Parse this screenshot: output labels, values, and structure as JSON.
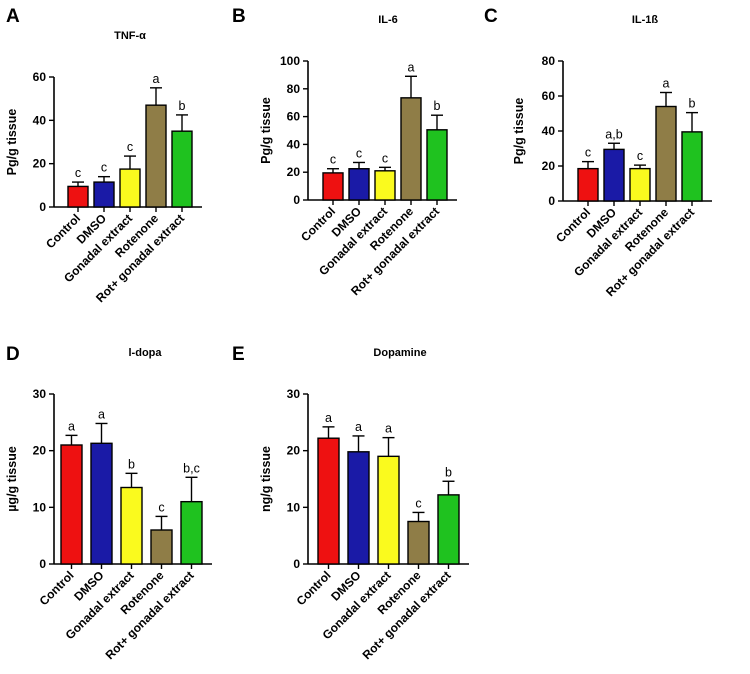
{
  "colors": {
    "Control": "#ee1111",
    "DMSO": "#1a1aa6",
    "Gonadal extract": "#fafa1e",
    "Rotenone": "#8f7d47",
    "Rot+ gonadal extract": "#1fc21f"
  },
  "chart_data": [
    {
      "type": "bar",
      "panel": "A",
      "title": "TNF-α",
      "ylabel": "Pg/g tissue",
      "ylim": [
        0,
        60
      ],
      "yticks": [
        0,
        20,
        40,
        60
      ],
      "categories": [
        "Control",
        "DMSO",
        "Gonadal extract",
        "Rotenone",
        "Rot+ gonadal extract"
      ],
      "values": [
        9.5,
        11.5,
        17.5,
        47,
        35
      ],
      "errors": [
        2,
        2.5,
        6,
        8,
        7.5
      ],
      "significance": [
        "c",
        "c",
        "c",
        "a",
        "b"
      ]
    },
    {
      "type": "bar",
      "panel": "B",
      "title": "IL-6",
      "ylabel": "Pg/g tissue",
      "ylim": [
        0,
        100
      ],
      "yticks": [
        0,
        20,
        40,
        60,
        80,
        100
      ],
      "categories": [
        "Control",
        "DMSO",
        "Gonadal extract",
        "Rotenone",
        "Rot+ gonadal extract"
      ],
      "values": [
        19.5,
        22.5,
        21,
        73.5,
        50.5
      ],
      "errors": [
        3,
        4.5,
        2.5,
        15.5,
        10.5
      ],
      "significance": [
        "c",
        "c",
        "c",
        "a",
        "b"
      ]
    },
    {
      "type": "bar",
      "panel": "C",
      "title": "IL-1ß",
      "ylabel": "Pg/g tissue",
      "ylim": [
        0,
        80
      ],
      "yticks": [
        0,
        20,
        40,
        60,
        80
      ],
      "categories": [
        "Control",
        "DMSO",
        "Gonadal extract",
        "Rotenone",
        "Rot+ gonadal extract"
      ],
      "values": [
        18.5,
        29.5,
        18.5,
        54,
        39.5
      ],
      "errors": [
        4,
        3.5,
        2,
        8,
        11
      ],
      "significance": [
        "c",
        "a,b",
        "c",
        "a",
        "b"
      ]
    },
    {
      "type": "bar",
      "panel": "D",
      "title": "l-dopa",
      "ylabel": "µg/g tissue",
      "ylim": [
        0,
        30
      ],
      "yticks": [
        0,
        10,
        20,
        30
      ],
      "categories": [
        "Control",
        "DMSO",
        "Gonadal extract",
        "Rotenone",
        "Rot+ gonadal extract"
      ],
      "values": [
        21,
        21.3,
        13.5,
        6,
        11
      ],
      "errors": [
        1.7,
        3.5,
        2.5,
        2.4,
        4.3
      ],
      "significance": [
        "a",
        "a",
        "b",
        "c",
        "b,c"
      ]
    },
    {
      "type": "bar",
      "panel": "E",
      "title": "Dopamine",
      "ylabel": "ng/g tissue",
      "ylim": [
        0,
        30
      ],
      "yticks": [
        0,
        10,
        20,
        30
      ],
      "categories": [
        "Control",
        "DMSO",
        "Gonadal extract",
        "Rotenone",
        "Rot+ gonadal extract"
      ],
      "values": [
        22.2,
        19.8,
        19,
        7.5,
        12.2
      ],
      "errors": [
        2,
        2.8,
        3.3,
        1.6,
        2.4
      ],
      "significance": [
        "a",
        "a",
        "a",
        "c",
        "b"
      ]
    }
  ]
}
